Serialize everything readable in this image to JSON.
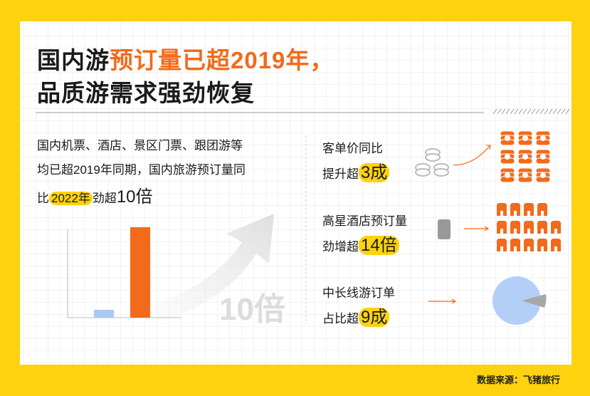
{
  "title": {
    "line1_black": "国内游",
    "line1_orange": "预订量已超2019年，",
    "line2": "品质游需求强劲恢复"
  },
  "intro": {
    "line1": "国内机票、酒店、景区门票、跟团游等",
    "line2": "均已超2019年同期，国内旅游预订量同",
    "line3_prefix": "比",
    "line3_highlight": "2022年",
    "line3_middle": "劲超",
    "line3_emphasis": "10倍"
  },
  "chart_label": "10倍",
  "stats": [
    {
      "label": "客单价同比",
      "prefix": "提升超",
      "highlight": "3成"
    },
    {
      "label": "高星酒店预订量",
      "prefix": "劲增超",
      "highlight": "14倍"
    },
    {
      "label": "中长线游订单",
      "prefix": "占比超",
      "highlight": "9成"
    }
  ],
  "source": "数据来源：飞猪旅行"
}
